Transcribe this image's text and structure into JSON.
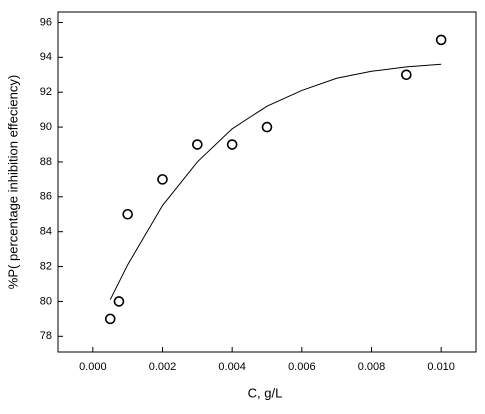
{
  "chart_data": {
    "type": "scatter",
    "xlabel": "C, g/L",
    "ylabel": "%P( percentage inhibition effeciency)",
    "x": [
      0.0005,
      0.00075,
      0.001,
      0.002,
      0.003,
      0.004,
      0.005,
      0.009,
      0.01
    ],
    "values": [
      79,
      80,
      85,
      87,
      89,
      89,
      90,
      93,
      95
    ],
    "color": "#000000",
    "fit": {
      "x": [
        0.0005,
        0.001,
        0.002,
        0.003,
        0.004,
        0.005,
        0.006,
        0.007,
        0.008,
        0.009,
        0.01
      ],
      "values": [
        80.1,
        82.1,
        85.5,
        88.0,
        89.9,
        91.2,
        92.1,
        92.8,
        93.2,
        93.45,
        93.6
      ]
    },
    "xlim": [
      -0.001,
      0.011
    ],
    "ylim": [
      77.1,
      96.6
    ],
    "xticks": [
      {
        "value": 0,
        "label": "0.000"
      },
      0.002,
      0.004,
      0.006,
      0.008,
      {
        "value": 0.01,
        "label": "0.010"
      }
    ],
    "yticks": [
      78,
      80,
      82,
      84,
      86,
      88,
      90,
      92,
      94,
      96
    ]
  }
}
